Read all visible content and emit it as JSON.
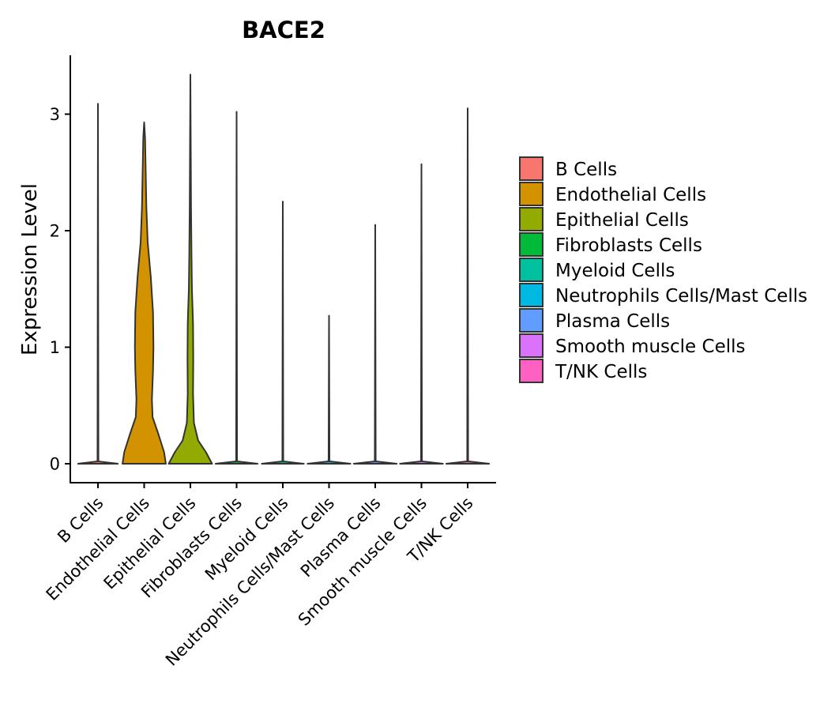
{
  "chart_data": {
    "type": "violin",
    "title": "BACE2",
    "xlabel": "",
    "ylabel": "Expression Level",
    "ylim": [
      -0.18,
      3.5
    ],
    "yticks": [
      0,
      1,
      2,
      3
    ],
    "categories": [
      "B Cells",
      "Endothelial Cells",
      "Epithelial Cells",
      "Fibroblasts Cells",
      "Myeloid Cells",
      "Neutrophils Cells/Mast Cells",
      "Plasma Cells",
      "Smooth muscle Cells",
      "T/NK Cells"
    ],
    "colors": [
      "#F8766D",
      "#D39200",
      "#93AA00",
      "#00BA38",
      "#00C19F",
      "#00B9E3",
      "#619CFF",
      "#DB72FB",
      "#FF61C3"
    ],
    "max_values": [
      3.09,
      2.93,
      3.34,
      3.02,
      2.25,
      1.27,
      2.05,
      2.57,
      3.05
    ],
    "density_profiles": [
      [
        [
          0,
          0.9
        ],
        [
          0.02,
          0.02
        ],
        [
          3.09,
          0.0
        ]
      ],
      [
        [
          0,
          0.98
        ],
        [
          0.1,
          0.9
        ],
        [
          0.25,
          0.65
        ],
        [
          0.4,
          0.38
        ],
        [
          0.55,
          0.35
        ],
        [
          0.8,
          0.4
        ],
        [
          1.0,
          0.42
        ],
        [
          1.3,
          0.4
        ],
        [
          1.6,
          0.3
        ],
        [
          1.9,
          0.16
        ],
        [
          2.2,
          0.1
        ],
        [
          2.5,
          0.07
        ],
        [
          2.8,
          0.04
        ],
        [
          2.93,
          0.0
        ]
      ],
      [
        [
          0,
          0.98
        ],
        [
          0.1,
          0.7
        ],
        [
          0.2,
          0.35
        ],
        [
          0.35,
          0.16
        ],
        [
          0.6,
          0.12
        ],
        [
          0.9,
          0.13
        ],
        [
          1.2,
          0.12
        ],
        [
          1.5,
          0.07
        ],
        [
          1.8,
          0.05
        ],
        [
          2.2,
          0.03
        ],
        [
          2.6,
          0.02
        ],
        [
          3.34,
          0.0
        ]
      ],
      [
        [
          0,
          0.95
        ],
        [
          0.02,
          0.02
        ],
        [
          3.02,
          0.0
        ]
      ],
      [
        [
          0,
          0.95
        ],
        [
          0.02,
          0.02
        ],
        [
          2.25,
          0.0
        ]
      ],
      [
        [
          0,
          0.97
        ],
        [
          0.02,
          0.02
        ],
        [
          1.27,
          0.0
        ]
      ],
      [
        [
          0,
          0.97
        ],
        [
          0.02,
          0.02
        ],
        [
          2.05,
          0.0
        ]
      ],
      [
        [
          0,
          0.97
        ],
        [
          0.02,
          0.02
        ],
        [
          2.57,
          0.0
        ]
      ],
      [
        [
          0,
          0.97
        ],
        [
          0.02,
          0.02
        ],
        [
          3.05,
          0.0
        ]
      ]
    ],
    "legend": {
      "position": "right",
      "entries": [
        "B Cells",
        "Endothelial Cells",
        "Epithelial Cells",
        "Fibroblasts Cells",
        "Myeloid Cells",
        "Neutrophils Cells/Mast Cells",
        "Plasma Cells",
        "Smooth muscle Cells",
        "T/NK Cells"
      ]
    }
  }
}
